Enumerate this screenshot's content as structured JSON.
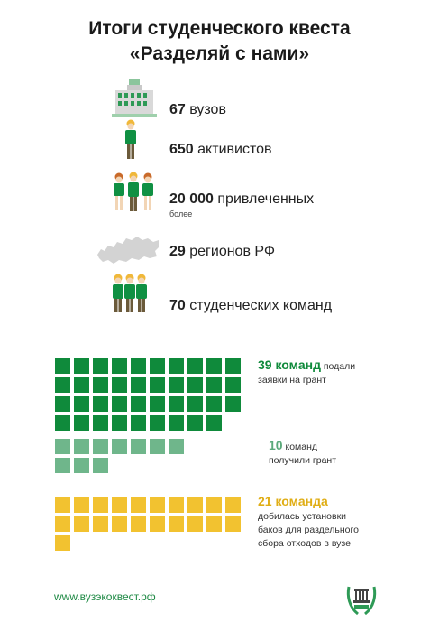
{
  "title": {
    "line1": "Итоги студенческого квеста",
    "line2": "«Разделяй с нами»"
  },
  "stats": [
    {
      "number": "67",
      "text": "вузов",
      "icon": "university-building-icon"
    },
    {
      "number": "650",
      "text": "активистов",
      "icon": "activist-person-icon"
    },
    {
      "number": "20 000",
      "text": "привлеченных",
      "sub": "более",
      "icon": "people-group-icon"
    },
    {
      "number": "29",
      "text": "регионов РФ",
      "icon": "russia-map-icon"
    },
    {
      "number": "70",
      "text": "студенческих команд",
      "icon": "student-team-icon"
    }
  ],
  "blocks": [
    {
      "count": 39,
      "color": "#0f8a3b",
      "caption_bold": "39 команд",
      "caption_rest": "подали",
      "caption_line2": "заявки на грант"
    },
    {
      "count": 10,
      "color": "#6fb68b",
      "caption_bold": "10",
      "caption_rest": "команд",
      "caption_line2": "получили грант"
    },
    {
      "count": 21,
      "color": "#f2c230",
      "caption_bold": "21 команда",
      "caption_line2": "добилась установки",
      "caption_line3": "баков для раздельного",
      "caption_line4": "сбора отходов в вузе"
    }
  ],
  "footer": {
    "link": "www.вузэкоквест.рф",
    "logo_icon": "laurel-logo-icon"
  }
}
